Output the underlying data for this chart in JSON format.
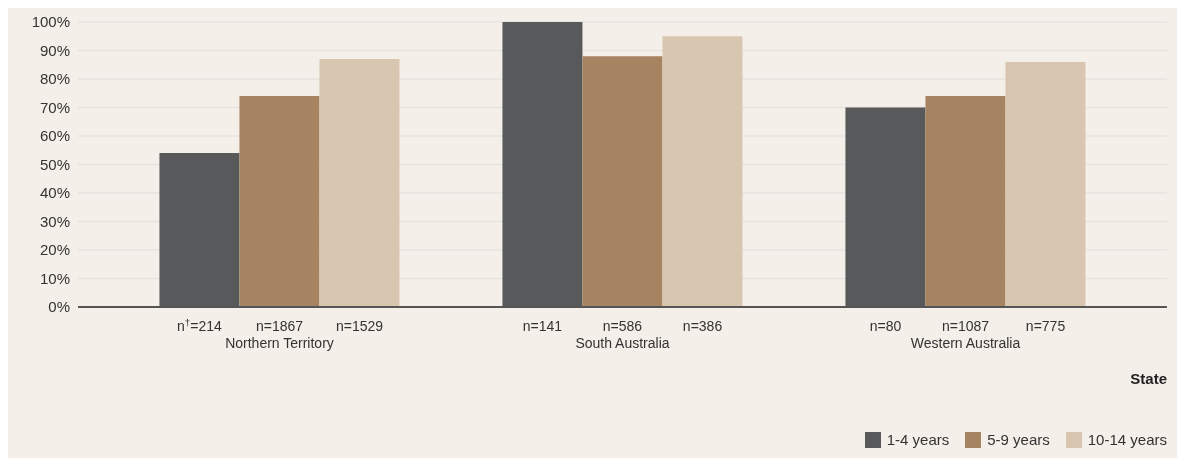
{
  "chart_data": {
    "type": "bar",
    "xlabel": "State",
    "categories": [
      "Northern Territory",
      "South Australia",
      "Western Australia"
    ],
    "series": [
      {
        "name": "1-4 years",
        "color": "#58595b",
        "values": [
          54,
          100,
          70
        ]
      },
      {
        "name": "5-9 years",
        "color": "#a68361",
        "values": [
          74,
          88,
          74
        ]
      },
      {
        "name": "10-14 years",
        "color": "#d9c6b0",
        "values": [
          87,
          95,
          86
        ]
      }
    ],
    "ylim": [
      0,
      100
    ],
    "yticks": [
      {
        "value": 0,
        "label": "0%"
      },
      {
        "value": 10,
        "label": "10%"
      },
      {
        "value": 20,
        "label": "20%"
      },
      {
        "value": 30,
        "label": "30%"
      },
      {
        "value": 40,
        "label": "40%"
      },
      {
        "value": 50,
        "label": "50%"
      },
      {
        "value": 60,
        "label": "60%"
      },
      {
        "value": 70,
        "label": "70%"
      },
      {
        "value": 80,
        "label": "80%"
      },
      {
        "value": 90,
        "label": "90%"
      },
      {
        "value": 100,
        "label": "100%"
      }
    ],
    "grid": "y",
    "legend": "bottom right",
    "annotations": [
      "n$^{†}$=214",
      "n=1867",
      "n=1529",
      "n=141",
      "n=586",
      "n=386",
      "n=80",
      "n=1087",
      "n=775"
    ]
  }
}
